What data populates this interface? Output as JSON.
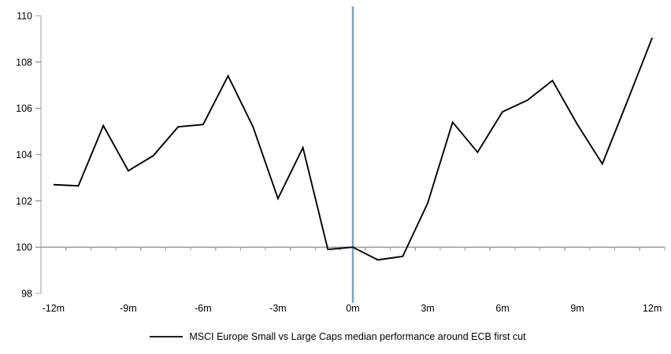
{
  "chart_data": {
    "type": "line",
    "title": "",
    "xlabel": "",
    "ylabel": "",
    "x_months": [
      -12,
      -11,
      -10,
      -9,
      -8,
      -7,
      -6,
      -5,
      -4,
      -3,
      -2,
      -1,
      0,
      1,
      2,
      3,
      4,
      5,
      6,
      7,
      8,
      9,
      10,
      11,
      12
    ],
    "series": [
      {
        "name": "MSCI Europe Small vs Large Caps median performance around ECB first cut",
        "values": [
          102.7,
          102.65,
          105.25,
          103.3,
          103.95,
          105.2,
          105.3,
          107.4,
          105.2,
          102.1,
          104.3,
          99.9,
          100.0,
          99.45,
          99.6,
          101.9,
          105.4,
          104.1,
          105.85,
          106.35,
          107.2,
          105.3,
          103.6,
          106.3,
          109.05
        ]
      }
    ],
    "xtick_months": [
      -12,
      -9,
      -6,
      -3,
      0,
      3,
      6,
      9,
      12
    ],
    "xtick_labels": [
      "-12m",
      "-9m",
      "-6m",
      "-3m",
      "0m",
      "3m",
      "6m",
      "9m",
      "12m"
    ],
    "yticks": [
      98,
      100,
      102,
      104,
      106,
      108,
      110
    ],
    "ytick_labels": [
      "98",
      "100",
      "102",
      "104",
      "106",
      "108",
      "110"
    ],
    "ylim": [
      98,
      110
    ],
    "x_axis_cross_value": 100,
    "event_line_month": 0,
    "grid": false,
    "legend_position": "bottom-center",
    "colors": {
      "series_line": "#000000",
      "event_line": "#74A3CF",
      "axis": "#9c9c9c",
      "text": "#000000",
      "background": "#FFFFFF"
    }
  },
  "legend": {
    "label": "MSCI Europe Small vs Large Caps median performance around ECB first cut"
  }
}
